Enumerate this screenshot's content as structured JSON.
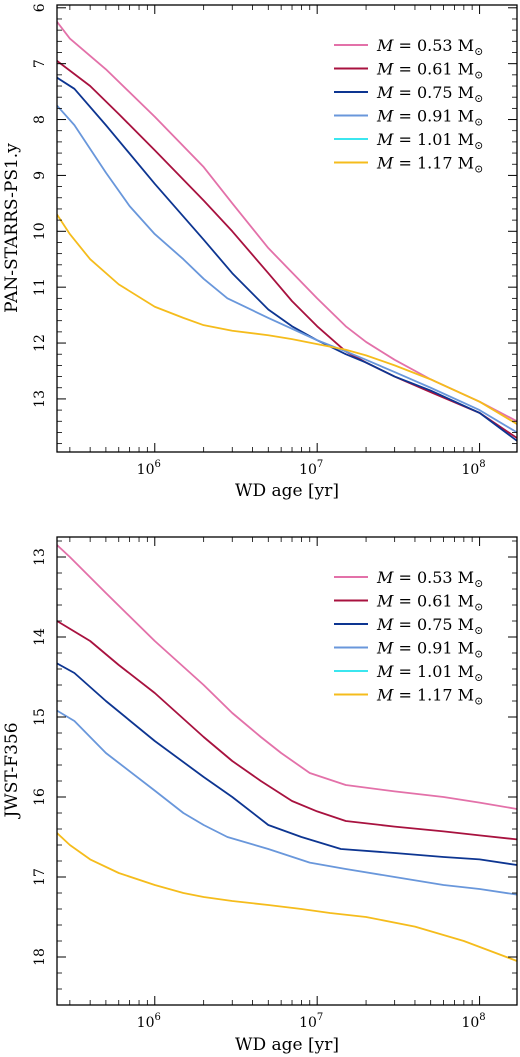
{
  "chart_data": [
    {
      "type": "line",
      "title": "",
      "xlabel": "WD age [yr]",
      "ylabel": "PAN-STARRS-PS1.y",
      "x_scale": "log",
      "xlim": [
        250000,
        170000000
      ],
      "ylim": [
        13.95,
        5.95
      ],
      "y_inverted": true,
      "x_ticks": [
        1000000,
        10000000,
        100000000
      ],
      "x_tick_labels": [
        {
          "base": "10",
          "exp": "6"
        },
        {
          "base": "10",
          "exp": "7"
        },
        {
          "base": "10",
          "exp": "8"
        }
      ],
      "y_ticks": [
        6,
        7,
        8,
        9,
        10,
        11,
        12,
        13
      ],
      "y_tick_labels": [
        "6",
        "7",
        "8",
        "9",
        "10",
        "11",
        "12",
        "13"
      ],
      "legend_position": "top-right",
      "series": [
        {
          "name": "M = 0.53 M☉",
          "mass": "0.53",
          "color": "#e371a9",
          "x": [
            250000,
            300000,
            500000,
            1000000,
            2000000,
            3000000,
            5000000,
            10000000,
            15000000,
            20000000,
            30000000,
            50000000,
            100000000,
            170000000
          ],
          "y": [
            6.25,
            6.55,
            7.1,
            7.95,
            8.85,
            9.5,
            10.3,
            11.2,
            11.7,
            11.98,
            12.3,
            12.65,
            13.05,
            13.4
          ]
        },
        {
          "name": "M = 0.61 M☉",
          "mass": "0.61",
          "color": "#a8123f",
          "x": [
            250000,
            400000,
            600000,
            1000000,
            2000000,
            3000000,
            5000000,
            7000000,
            10000000,
            15000000,
            20000000,
            30000000,
            50000000,
            100000000,
            170000000
          ],
          "y": [
            6.95,
            7.4,
            7.9,
            8.55,
            9.45,
            10.0,
            10.75,
            11.25,
            11.7,
            12.15,
            12.35,
            12.6,
            12.88,
            13.25,
            13.7
          ]
        },
        {
          "name": "M = 0.75 M☉",
          "mass": "0.75",
          "color": "#0d3591",
          "x": [
            250000,
            320000,
            500000,
            1000000,
            2000000,
            3000000,
            5000000,
            7000000,
            10000000,
            15000000,
            20000000,
            30000000,
            50000000,
            100000000,
            170000000
          ],
          "y": [
            7.25,
            7.45,
            8.1,
            9.15,
            10.15,
            10.75,
            11.4,
            11.7,
            11.95,
            12.2,
            12.35,
            12.6,
            12.85,
            13.25,
            13.75
          ]
        },
        {
          "name": "M = 0.91 M☉",
          "mass": "0.91",
          "color": "#6997db",
          "x": [
            250000,
            320000,
            500000,
            700000,
            1000000,
            1500000,
            2000000,
            2800000,
            5000000,
            10000000,
            15000000,
            20000000,
            30000000,
            50000000,
            100000000,
            170000000
          ],
          "y": [
            7.75,
            8.1,
            8.95,
            9.55,
            10.05,
            10.5,
            10.85,
            11.2,
            11.55,
            11.95,
            12.15,
            12.3,
            12.52,
            12.8,
            13.2,
            13.6
          ]
        },
        {
          "name": "M = 1.01 M☉",
          "mass": "1.01",
          "color": "#3be6ef",
          "x": [],
          "y": []
        },
        {
          "name": "M = 1.17 M☉",
          "mass": "1.17",
          "color": "#f5bc1c",
          "x": [
            250000,
            300000,
            400000,
            600000,
            1000000,
            1500000,
            2000000,
            3000000,
            5000000,
            7000000,
            10000000,
            15000000,
            20000000,
            30000000,
            50000000,
            100000000,
            170000000
          ],
          "y": [
            9.7,
            10.05,
            10.5,
            10.95,
            11.35,
            11.55,
            11.68,
            11.78,
            11.86,
            11.93,
            12.02,
            12.12,
            12.22,
            12.4,
            12.65,
            13.05,
            13.45
          ]
        }
      ]
    },
    {
      "type": "line",
      "title": "",
      "xlabel": "WD age [yr]",
      "ylabel": "JWST-F356",
      "x_scale": "log",
      "xlim": [
        250000,
        170000000
      ],
      "ylim": [
        18.6,
        12.75
      ],
      "y_inverted": true,
      "x_ticks": [
        1000000,
        10000000,
        100000000
      ],
      "x_tick_labels": [
        {
          "base": "10",
          "exp": "6"
        },
        {
          "base": "10",
          "exp": "7"
        },
        {
          "base": "10",
          "exp": "8"
        }
      ],
      "y_ticks": [
        13,
        14,
        15,
        16,
        17,
        18
      ],
      "y_tick_labels": [
        "13",
        "14",
        "15",
        "16",
        "17",
        "18"
      ],
      "legend_position": "top-right",
      "series": [
        {
          "name": "M = 0.53 M☉",
          "mass": "0.53",
          "color": "#e371a9",
          "x": [
            250000,
            300000,
            500000,
            1000000,
            2000000,
            3000000,
            4500000,
            6000000,
            9000000,
            15000000,
            30000000,
            60000000,
            100000000,
            170000000
          ],
          "y": [
            12.85,
            13.0,
            13.45,
            14.05,
            14.6,
            14.95,
            15.25,
            15.45,
            15.7,
            15.85,
            15.93,
            16.0,
            16.07,
            16.15
          ]
        },
        {
          "name": "M = 0.61 M☉",
          "mass": "0.61",
          "color": "#a8123f",
          "x": [
            250000,
            400000,
            600000,
            1000000,
            2000000,
            3000000,
            4500000,
            7000000,
            10000000,
            15000000,
            30000000,
            60000000,
            100000000,
            170000000
          ],
          "y": [
            13.8,
            14.05,
            14.35,
            14.7,
            15.25,
            15.55,
            15.8,
            16.05,
            16.18,
            16.3,
            16.37,
            16.43,
            16.48,
            16.53
          ]
        },
        {
          "name": "M = 0.75 M☉",
          "mass": "0.75",
          "color": "#0d3591",
          "x": [
            250000,
            320000,
            500000,
            1000000,
            2000000,
            3000000,
            5000000,
            8000000,
            14000000,
            30000000,
            60000000,
            100000000,
            170000000
          ],
          "y": [
            14.33,
            14.45,
            14.8,
            15.3,
            15.75,
            16.0,
            16.35,
            16.5,
            16.65,
            16.7,
            16.75,
            16.78,
            16.85
          ]
        },
        {
          "name": "M = 0.91 M☉",
          "mass": "0.91",
          "color": "#6997db",
          "x": [
            250000,
            320000,
            500000,
            1000000,
            1500000,
            2000000,
            2800000,
            5000000,
            9000000,
            15000000,
            30000000,
            60000000,
            100000000,
            170000000
          ],
          "y": [
            14.92,
            15.05,
            15.45,
            15.92,
            16.2,
            16.35,
            16.5,
            16.65,
            16.82,
            16.9,
            17.0,
            17.1,
            17.15,
            17.22
          ]
        },
        {
          "name": "M = 1.01 M☉",
          "mass": "1.01",
          "color": "#3be6ef",
          "x": [],
          "y": []
        },
        {
          "name": "M = 1.17 M☉",
          "mass": "1.17",
          "color": "#f5bc1c",
          "x": [
            250000,
            300000,
            400000,
            600000,
            1000000,
            1500000,
            2000000,
            3000000,
            5000000,
            8000000,
            12000000,
            20000000,
            40000000,
            80000000,
            170000000
          ],
          "y": [
            16.45,
            16.6,
            16.78,
            16.95,
            17.1,
            17.2,
            17.25,
            17.3,
            17.35,
            17.4,
            17.45,
            17.5,
            17.62,
            17.8,
            18.05
          ]
        }
      ]
    }
  ]
}
